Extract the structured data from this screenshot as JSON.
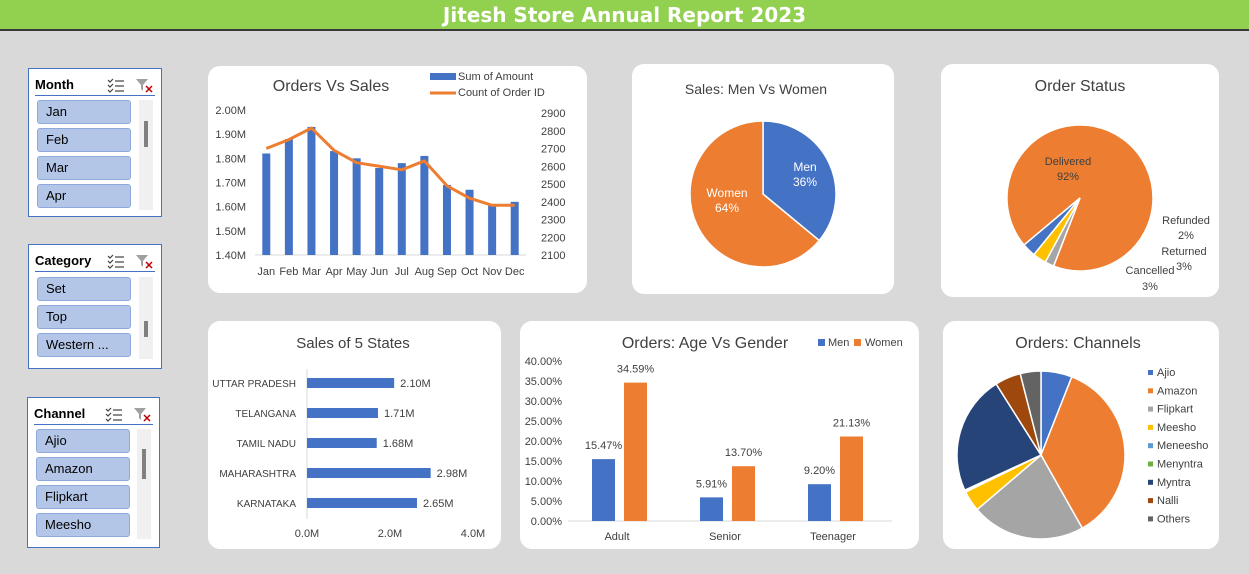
{
  "report_title": "Jitesh Store Annual Report 2023",
  "slicers": [
    {
      "title": "Month",
      "items": [
        "Jan",
        "Feb",
        "Mar",
        "Apr"
      ],
      "icons": [
        "multi-select-icon",
        "clear-filter-icon"
      ]
    },
    {
      "title": "Category",
      "items": [
        "Set",
        "Top",
        "Western ..."
      ],
      "icons": [
        "multi-select-icon",
        "clear-filter-icon"
      ]
    },
    {
      "title": "Channel",
      "items": [
        "Ajio",
        "Amazon",
        "Flipkart",
        "Meesho"
      ],
      "icons": [
        "multi-select-icon",
        "clear-filter-icon"
      ]
    }
  ],
  "colors": {
    "blue": "#4472c4",
    "orange": "#ed7d31",
    "gray": "#a5a5a5",
    "yellow": "#ffc000",
    "lightblue": "#5b9bd5",
    "green": "#70ad47",
    "navy": "#264478",
    "brown": "#9e480e",
    "darkgray": "#636363",
    "banner": "#92d050"
  },
  "chart_data": [
    {
      "type": "bar-line-combo",
      "title": "Orders Vs Sales",
      "categories": [
        "Jan",
        "Feb",
        "Mar",
        "Apr",
        "May",
        "Jun",
        "Jul",
        "Aug",
        "Sep",
        "Oct",
        "Nov",
        "Dec"
      ],
      "series": [
        {
          "name": "Sum of Amount",
          "type": "bar",
          "axis": "left",
          "values": [
            1.82,
            1.88,
            1.93,
            1.83,
            1.8,
            1.76,
            1.78,
            1.81,
            1.69,
            1.67,
            1.61,
            1.62
          ]
        },
        {
          "name": "Count of Order ID",
          "type": "line",
          "axis": "right",
          "values": [
            2700,
            2750,
            2815,
            2690,
            2620,
            2600,
            2580,
            2630,
            2490,
            2420,
            2380,
            2380
          ]
        }
      ],
      "left_ticks": [
        "2.00M",
        "1.90M",
        "1.80M",
        "1.70M",
        "1.60M",
        "1.50M",
        "1.40M"
      ],
      "ylim_left": [
        1.4,
        2.0
      ],
      "right_ticks": [
        "2900",
        "2800",
        "2700",
        "2600",
        "2500",
        "2400",
        "2300",
        "2200",
        "2100"
      ],
      "ylim_right": [
        2100,
        2900
      ],
      "legend": "top-right"
    },
    {
      "type": "pie",
      "title": "Sales: Men Vs Women",
      "labels": [
        "Men",
        "Women"
      ],
      "values": [
        36,
        64
      ],
      "value_labels": [
        "36%",
        "64%"
      ]
    },
    {
      "type": "pie",
      "title": "Order Status",
      "labels": [
        "Delivered",
        "Refunded",
        "Returned",
        "Cancelled"
      ],
      "values": [
        92,
        2,
        3,
        3
      ],
      "value_labels": [
        "92%",
        "2%",
        "3%",
        "3%"
      ]
    },
    {
      "type": "bar",
      "orientation": "horizontal",
      "title": "Sales of 5 States",
      "categories": [
        "UTTAR PRADESH",
        "TELANGANA",
        "TAMIL NADU",
        "MAHARASHTRA",
        "KARNATAKA"
      ],
      "values": [
        2.1,
        1.71,
        1.68,
        2.98,
        2.65
      ],
      "value_labels": [
        "2.10M",
        "1.71M",
        "1.68M",
        "2.98M",
        "2.65M"
      ],
      "x_ticks": [
        "0.0M",
        "2.0M",
        "4.0M"
      ],
      "xlim": [
        0,
        4
      ]
    },
    {
      "type": "bar",
      "title": "Orders: Age Vs Gender",
      "categories": [
        "Adult",
        "Senior",
        "Teenager"
      ],
      "series": [
        {
          "name": "Men",
          "values": [
            15.47,
            5.91,
            9.2
          ],
          "value_labels": [
            "15.47%",
            "5.91%",
            "9.20%"
          ]
        },
        {
          "name": "Women",
          "values": [
            34.59,
            13.7,
            21.13
          ],
          "value_labels": [
            "34.59%",
            "13.70%",
            "21.13%"
          ]
        }
      ],
      "y_ticks": [
        "40.00%",
        "35.00%",
        "30.00%",
        "25.00%",
        "20.00%",
        "15.00%",
        "10.00%",
        "5.00%",
        "0.00%"
      ],
      "ylim": [
        0,
        40
      ],
      "legend": "top-right"
    },
    {
      "type": "pie",
      "title": "Orders: Channels",
      "labels": [
        "Ajio",
        "Amazon",
        "Flipkart",
        "Meesho",
        "Meneesho",
        "Menyntra",
        "Myntra",
        "Nalli",
        "Others"
      ],
      "values": [
        6,
        36,
        22,
        4,
        0.2,
        0.2,
        23,
        5,
        4
      ],
      "legend": "right"
    }
  ]
}
